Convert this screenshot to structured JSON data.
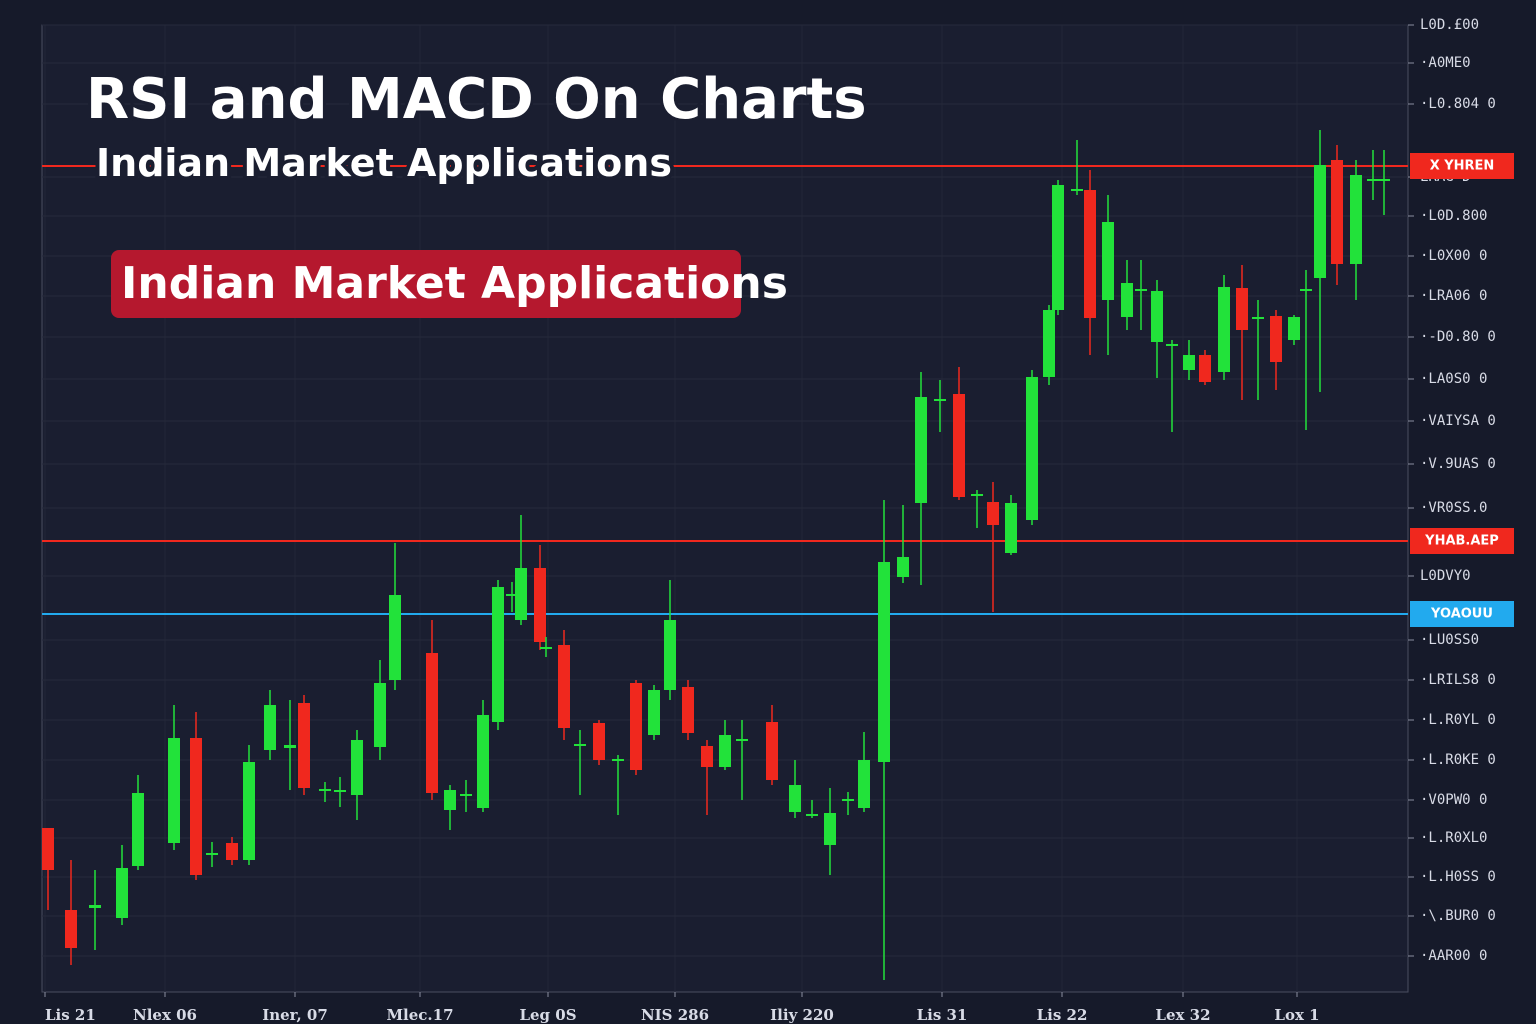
{
  "chart_data": {
    "type": "candlestick",
    "title": "RSI and MACD On Charts",
    "subtitle": "Indian Market Applications",
    "annotation": "Indian Market Applications",
    "up_color": "#22e23a",
    "down_color": "#f0281e",
    "grid": true,
    "xlim": [
      0,
      1366
    ],
    "ylim": [
      0,
      967
    ],
    "xticks": [
      {
        "value": 3,
        "label": "Lis 21"
      },
      {
        "value": 123,
        "label": "Nlex 06"
      },
      {
        "value": 253,
        "label": "Iner, 07"
      },
      {
        "value": 378,
        "label": "Mlec.17"
      },
      {
        "value": 506,
        "label": "Leg 0S"
      },
      {
        "value": 633,
        "label": "NIS 286"
      },
      {
        "value": 760,
        "label": "Iliy 220"
      },
      {
        "value": 900,
        "label": "Lis 31"
      },
      {
        "value": 1020,
        "label": "Lis 22"
      },
      {
        "value": 1141,
        "label": "Lex 32"
      },
      {
        "value": 1255,
        "label": "Lox 1"
      }
    ],
    "yticks": [
      {
        "value": 967,
        "label": "L0D.£00"
      },
      {
        "value": 929,
        "label": "·A0ME0"
      },
      {
        "value": 888,
        "label": "·L0.804 0"
      },
      {
        "value": 815,
        "label": "LRAG Ð"
      },
      {
        "value": 776,
        "label": "·L0D.800"
      },
      {
        "value": 736,
        "label": "·L0X00 0"
      },
      {
        "value": 696,
        "label": "·LRA06 0"
      },
      {
        "value": 655,
        "label": "·-D0.80 0"
      },
      {
        "value": 613,
        "label": "·LA0S0 0"
      },
      {
        "value": 571,
        "label": "·VAIYSA 0"
      },
      {
        "value": 528,
        "label": "·V.9UAS 0"
      },
      {
        "value": 484,
        "label": "·VR0SS.0"
      },
      {
        "value": 416,
        "label": "L0DVY0"
      },
      {
        "value": 352,
        "label": "·LU0SS0"
      },
      {
        "value": 312,
        "label": "·LRILS8 0"
      },
      {
        "value": 272,
        "label": "·L.R0YL 0"
      },
      {
        "value": 232,
        "label": "·L.R0KE 0"
      },
      {
        "value": 192,
        "label": "·V0PW0 0"
      },
      {
        "value": 154,
        "label": "·L.R0XL0"
      },
      {
        "value": 115,
        "label": "·L.H0SS 0"
      },
      {
        "value": 76,
        "label": "·\\.BUR0 0"
      },
      {
        "value": 36,
        "label": "·AAR00 0"
      }
    ],
    "levels": [
      {
        "value": 826,
        "label": "X YHREN",
        "color": "#f0281e"
      },
      {
        "value": 451,
        "label": "YHAB.AEP",
        "color": "#f0281e"
      },
      {
        "value": 378,
        "label": "YOAOUU",
        "color": "#22aaee"
      }
    ],
    "x": [
      6,
      29,
      53,
      80,
      96,
      132,
      154,
      170,
      190,
      207,
      228,
      248,
      262,
      283,
      298,
      315,
      338,
      353,
      390,
      408,
      424,
      441,
      456,
      470,
      479,
      498,
      504,
      522,
      538,
      557,
      576,
      594,
      612,
      628,
      646,
      665,
      683,
      700,
      730,
      753,
      770,
      788,
      806,
      822,
      842,
      861,
      879,
      898,
      917,
      935,
      951,
      969,
      990,
      1007,
      1016,
      1035,
      1048,
      1066,
      1085,
      1099,
      1115,
      1130,
      1147,
      1163,
      1182,
      1200,
      1216,
      1234,
      1252,
      1264,
      1278,
      1295,
      1314,
      1331,
      1342
    ],
    "open": [
      164,
      82,
      84,
      74,
      126,
      149,
      254,
      137,
      149,
      132,
      242,
      244,
      289,
      201,
      200,
      197,
      245,
      312,
      339,
      182,
      196,
      184,
      270,
      396,
      372,
      424,
      343,
      347,
      246,
      269,
      231,
      309,
      257,
      302,
      305,
      246,
      225,
      251,
      270,
      180,
      176,
      147,
      191,
      184,
      230,
      415,
      489,
      591,
      598,
      496,
      490,
      439,
      472,
      615,
      682,
      801,
      802,
      692,
      675,
      701,
      650,
      646,
      622,
      637,
      620,
      704,
      673,
      676,
      652,
      701,
      714,
      832,
      728,
      811,
      811
    ],
    "high": [
      164,
      132,
      122,
      147,
      217,
      287,
      280,
      150,
      155,
      247,
      302,
      292,
      297,
      210,
      215,
      262,
      332,
      449,
      372,
      207,
      212,
      292,
      412,
      410,
      477,
      447,
      355,
      362,
      262,
      272,
      237,
      312,
      307,
      412,
      312,
      252,
      272,
      272,
      287,
      232,
      192,
      204,
      200,
      260,
      492,
      487,
      620,
      612,
      625,
      502,
      510,
      497,
      622,
      687,
      812,
      852,
      822,
      797,
      732,
      732,
      712,
      652,
      652,
      642,
      717,
      727,
      692,
      682,
      677,
      722,
      862,
      847,
      832,
      842,
      842
    ],
    "low": [
      82,
      27,
      42,
      67,
      122,
      142,
      112,
      125,
      127,
      127,
      232,
      202,
      197,
      190,
      185,
      172,
      232,
      302,
      192,
      162,
      180,
      180,
      262,
      380,
      367,
      342,
      335,
      252,
      197,
      227,
      177,
      217,
      252,
      292,
      252,
      177,
      222,
      192,
      207,
      174,
      174,
      117,
      177,
      180,
      12,
      409,
      407,
      560,
      492,
      464,
      380,
      437,
      467,
      607,
      677,
      797,
      637,
      637,
      662,
      662,
      614,
      560,
      612,
      607,
      612,
      592,
      592,
      602,
      647,
      562,
      600,
      707,
      692,
      792,
      777
    ],
    "close": [
      122,
      44,
      87,
      124,
      199,
      254,
      117,
      139,
      132,
      230,
      287,
      247,
      204,
      203,
      202,
      252,
      309,
      397,
      199,
      202,
      198,
      277,
      405,
      398,
      424,
      350,
      345,
      264,
      248,
      232,
      233,
      222,
      302,
      372,
      259,
      225,
      257,
      253,
      212,
      207,
      178,
      179,
      193,
      232,
      430,
      435,
      595,
      593,
      495,
      498,
      467,
      489,
      615,
      682,
      807,
      803,
      674,
      770,
      709,
      703,
      701,
      648,
      637,
      610,
      705,
      662,
      675,
      630,
      675,
      703,
      827,
      728,
      817,
      813,
      813
    ]
  }
}
